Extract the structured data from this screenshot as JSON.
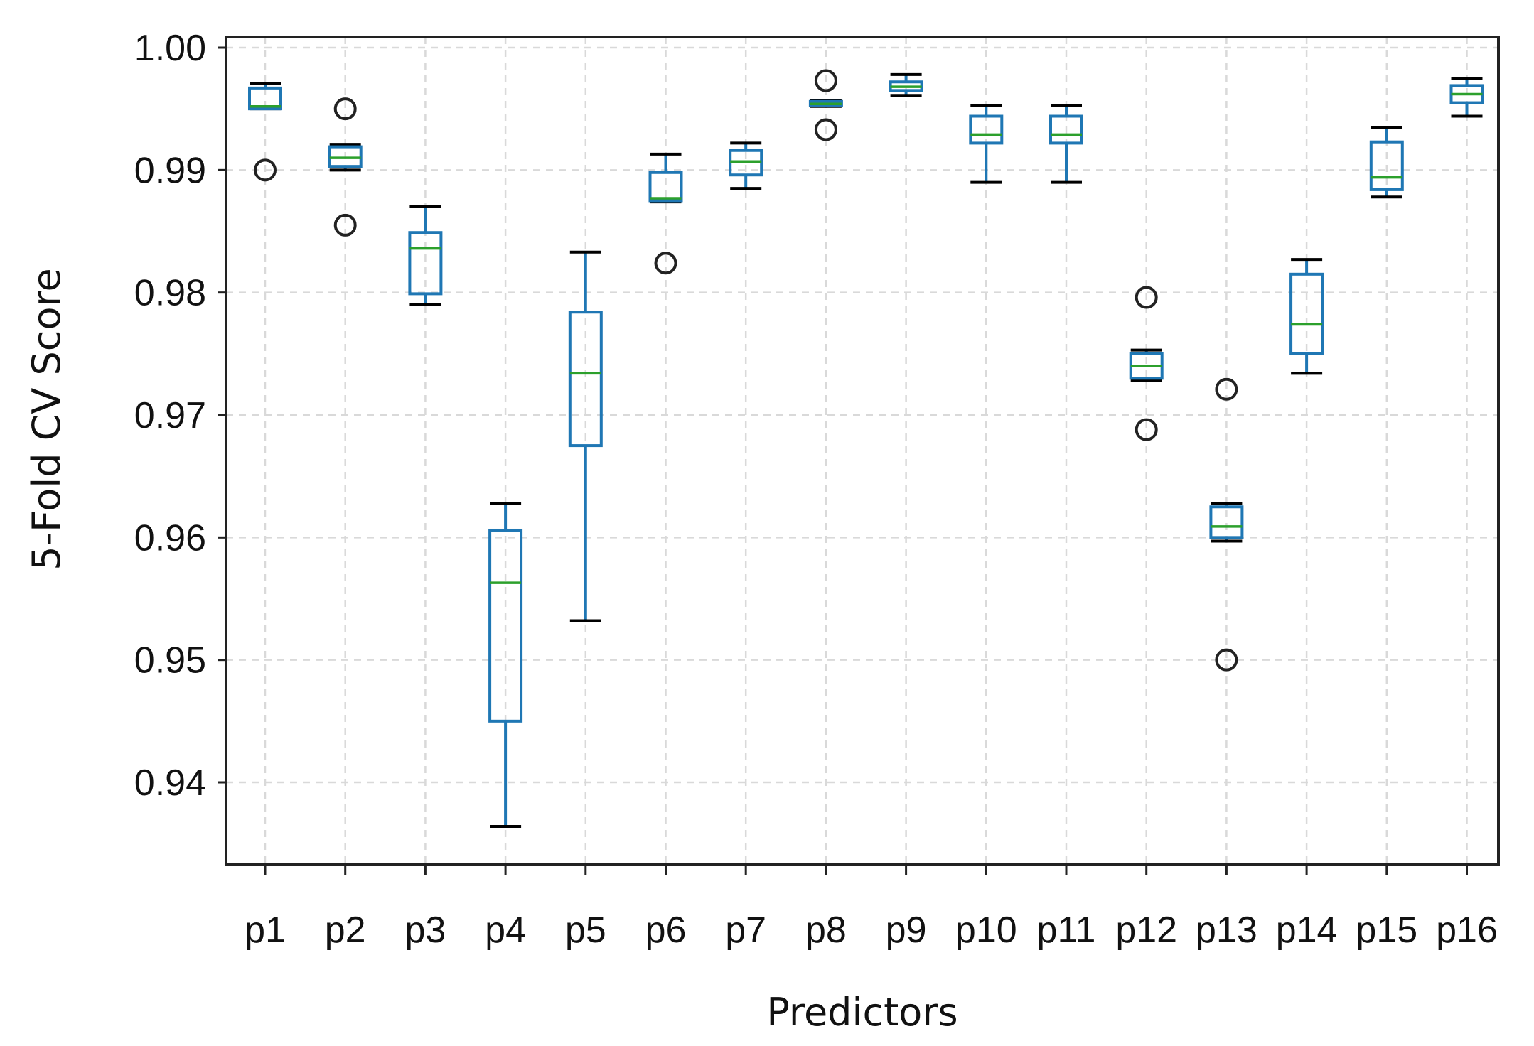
{
  "chart_data": {
    "type": "boxplot",
    "title": "",
    "xlabel": "Predictors",
    "ylabel": "5-Fold CV Score",
    "ylim": [
      0.933,
      1.001
    ],
    "yticks": [
      0.94,
      0.95,
      0.96,
      0.97,
      0.98,
      0.99,
      1.0
    ],
    "ytick_labels": [
      "0.94",
      "0.95",
      "0.96",
      "0.97",
      "0.98",
      "0.99",
      "1.00"
    ],
    "grid": true,
    "categories": [
      "p1",
      "p2",
      "p3",
      "p4",
      "p5",
      "p6",
      "p7",
      "p8",
      "p9",
      "p10",
      "p11",
      "p12",
      "p13",
      "p14",
      "p15",
      "p16"
    ],
    "boxes": [
      {
        "label": "p1",
        "whisker_low": 0.995,
        "q1": 0.995,
        "median": 0.9952,
        "q3": 0.9967,
        "whisker_high": 0.9971,
        "outliers": [
          0.99
        ]
      },
      {
        "label": "p2",
        "whisker_low": 0.99,
        "q1": 0.9903,
        "median": 0.991,
        "q3": 0.9919,
        "whisker_high": 0.9921,
        "outliers": [
          0.995,
          0.9855
        ]
      },
      {
        "label": "p3",
        "whisker_low": 0.979,
        "q1": 0.9799,
        "median": 0.9836,
        "q3": 0.9849,
        "whisker_high": 0.987,
        "outliers": []
      },
      {
        "label": "p4",
        "whisker_low": 0.9364,
        "q1": 0.945,
        "median": 0.9563,
        "q3": 0.9606,
        "whisker_high": 0.9628,
        "outliers": []
      },
      {
        "label": "p5",
        "whisker_low": 0.9532,
        "q1": 0.9675,
        "median": 0.9734,
        "q3": 0.9784,
        "whisker_high": 0.9833,
        "outliers": []
      },
      {
        "label": "p6",
        "whisker_low": 0.9874,
        "q1": 0.9875,
        "median": 0.9877,
        "q3": 0.9898,
        "whisker_high": 0.9913,
        "outliers": [
          0.9824
        ]
      },
      {
        "label": "p7",
        "whisker_low": 0.9885,
        "q1": 0.9896,
        "median": 0.9907,
        "q3": 0.9916,
        "whisker_high": 0.9922,
        "outliers": []
      },
      {
        "label": "p8",
        "whisker_low": 0.9952,
        "q1": 0.9953,
        "median": 0.9954,
        "q3": 0.9956,
        "whisker_high": 0.9957,
        "outliers": [
          0.9973,
          0.9933
        ]
      },
      {
        "label": "p9",
        "whisker_low": 0.9961,
        "q1": 0.9965,
        "median": 0.9968,
        "q3": 0.9972,
        "whisker_high": 0.9978,
        "outliers": []
      },
      {
        "label": "p10",
        "whisker_low": 0.989,
        "q1": 0.9922,
        "median": 0.9929,
        "q3": 0.9944,
        "whisker_high": 0.9953,
        "outliers": []
      },
      {
        "label": "p11",
        "whisker_low": 0.989,
        "q1": 0.9922,
        "median": 0.9929,
        "q3": 0.9944,
        "whisker_high": 0.9953,
        "outliers": []
      },
      {
        "label": "p12",
        "whisker_low": 0.9728,
        "q1": 0.973,
        "median": 0.974,
        "q3": 0.975,
        "whisker_high": 0.9753,
        "outliers": [
          0.9796,
          0.9688
        ]
      },
      {
        "label": "p13",
        "whisker_low": 0.9597,
        "q1": 0.96,
        "median": 0.9609,
        "q3": 0.9625,
        "whisker_high": 0.9628,
        "outliers": [
          0.9721,
          0.95
        ]
      },
      {
        "label": "p14",
        "whisker_low": 0.9734,
        "q1": 0.975,
        "median": 0.9774,
        "q3": 0.9815,
        "whisker_high": 0.9827,
        "outliers": []
      },
      {
        "label": "p15",
        "whisker_low": 0.9878,
        "q1": 0.9884,
        "median": 0.9894,
        "q3": 0.9923,
        "whisker_high": 0.9935,
        "outliers": []
      },
      {
        "label": "p16",
        "whisker_low": 0.9944,
        "q1": 0.9955,
        "median": 0.9962,
        "q3": 0.9969,
        "whisker_high": 0.9975,
        "outliers": []
      }
    ],
    "colors": {
      "box": "#1f77b4",
      "median": "#2ca02c",
      "whisker_cap": "#000000",
      "outlier": "#222222",
      "grid": "#d9d9d9",
      "frame": "#222222"
    }
  }
}
